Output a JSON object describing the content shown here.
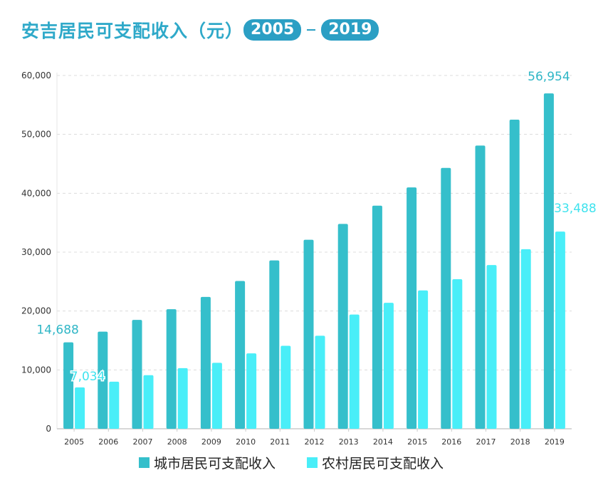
{
  "title": {
    "text": "安吉居民可支配收入（元）",
    "start_year": "2005",
    "end_year": "2019"
  },
  "colors": {
    "accent": "#2b9fc4",
    "urban": "#35bfcb",
    "rural": "#49eef8",
    "label_urban": "#2fb6c6",
    "label_rural": "#3fe3ee"
  },
  "chart_data": {
    "type": "bar",
    "categories": [
      "2005",
      "2006",
      "2007",
      "2008",
      "2009",
      "2010",
      "2011",
      "2012",
      "2013",
      "2014",
      "2015",
      "2016",
      "2017",
      "2018",
      "2019"
    ],
    "series": [
      {
        "name": "城市居民可支配收入",
        "values": [
          14688,
          16500,
          18500,
          20300,
          22400,
          25100,
          28600,
          32100,
          34800,
          37900,
          41000,
          44300,
          48100,
          52500,
          56954
        ]
      },
      {
        "name": "农村居民可支配收入",
        "values": [
          7034,
          8000,
          9100,
          10300,
          11200,
          12800,
          14100,
          15800,
          19400,
          21400,
          23500,
          25400,
          27800,
          30500,
          33488
        ]
      }
    ],
    "ylim": [
      0,
      60000
    ],
    "yticks": [
      "0",
      "10,000",
      "20,000",
      "30,000",
      "40,000",
      "50,000",
      "60,000"
    ],
    "data_labels": [
      {
        "series": 0,
        "index": 0,
        "text": "14,688"
      },
      {
        "series": 1,
        "index": 0,
        "text": "7,034"
      },
      {
        "series": 0,
        "index": 14,
        "text": "56,954"
      },
      {
        "series": 1,
        "index": 14,
        "text": "33,488"
      }
    ],
    "grid": true,
    "legend_position": "bottom"
  }
}
